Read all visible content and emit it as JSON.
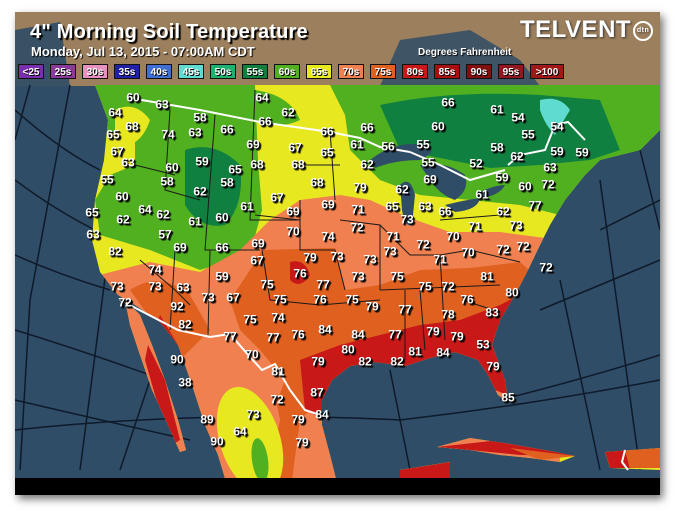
{
  "header": {
    "title": "4\" Morning Soil Temperature",
    "subtitle": "Monday, Jul 13, 2015 - 07:00AM CDT",
    "units": "Degrees Fahrenheit",
    "logo_text": "TELVENT",
    "logo_badge": "dtn"
  },
  "legend": [
    {
      "label": "<25",
      "color": "#7a2fb0"
    },
    {
      "label": "25s",
      "color": "#8a3a9a"
    },
    {
      "label": "30s",
      "color": "#e890c0"
    },
    {
      "label": "35s",
      "color": "#2020a8"
    },
    {
      "label": "40s",
      "color": "#3f6fd0"
    },
    {
      "label": "45s",
      "color": "#5fdccf"
    },
    {
      "label": "50s",
      "color": "#20b070"
    },
    {
      "label": "55s",
      "color": "#108040"
    },
    {
      "label": "60s",
      "color": "#50b020"
    },
    {
      "label": "65s",
      "color": "#e8e820"
    },
    {
      "label": "70s",
      "color": "#f08050"
    },
    {
      "label": "75s",
      "color": "#e06020"
    },
    {
      "label": "80s",
      "color": "#c81818"
    },
    {
      "label": "85s",
      "color": "#a81010"
    },
    {
      "label": "90s",
      "color": "#801010"
    },
    {
      "label": "95s",
      "color": "#901820"
    },
    {
      "label": ">100",
      "color": "#a01818"
    }
  ],
  "colors": {
    "ocean": "#2f4d66",
    "canada_header": "#9c7f5c",
    "border": "#ffffff"
  },
  "temperatures": [
    "60",
    "63",
    "64",
    "62",
    "64",
    "58",
    "66",
    "66",
    "66",
    "68",
    "74",
    "63",
    "65",
    "69",
    "67",
    "65",
    "67",
    "63",
    "59",
    "60",
    "65",
    "68",
    "68",
    "55",
    "58",
    "62",
    "58",
    "68",
    "67",
    "60",
    "61",
    "69",
    "69",
    "65",
    "64",
    "62",
    "62",
    "61",
    "60",
    "70",
    "74",
    "63",
    "57",
    "69",
    "67",
    "82",
    "69",
    "66",
    "79",
    "73",
    "76",
    "59",
    "74",
    "66",
    "61",
    "54",
    "54",
    "55",
    "66",
    "60",
    "61",
    "56",
    "55",
    "58",
    "52",
    "62",
    "59",
    "59",
    "62",
    "55",
    "63",
    "59",
    "69",
    "79",
    "62",
    "61",
    "60",
    "72",
    "65",
    "63",
    "66",
    "62",
    "77",
    "71",
    "73",
    "71",
    "73",
    "72",
    "71",
    "70",
    "72",
    "72",
    "72",
    "71",
    "70",
    "73",
    "73",
    "73",
    "75",
    "81",
    "72",
    "73",
    "77",
    "75",
    "75",
    "76",
    "75",
    "79",
    "75",
    "72",
    "76",
    "77",
    "78",
    "83",
    "75",
    "74",
    "84",
    "84",
    "77",
    "76",
    "77",
    "79",
    "79",
    "80",
    "70",
    "79",
    "82",
    "82",
    "81",
    "84",
    "53",
    "79",
    "73",
    "73",
    "63",
    "67",
    "72",
    "92",
    "82",
    "77",
    "90",
    "38",
    "81",
    "79",
    "87",
    "72",
    "73",
    "84",
    "89",
    "64",
    "90",
    "79",
    "80",
    "85"
  ]
}
